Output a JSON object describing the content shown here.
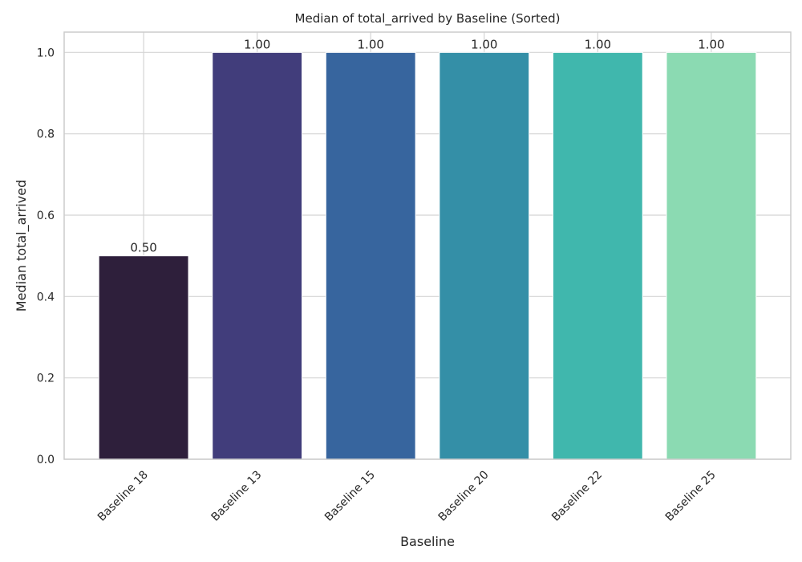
{
  "chart_data": {
    "type": "bar",
    "title": "Median of total_arrived by Baseline (Sorted)",
    "xlabel": "Baseline",
    "ylabel": "Median total_arrived",
    "categories": [
      "Baseline 18",
      "Baseline 13",
      "Baseline 15",
      "Baseline 20",
      "Baseline 22",
      "Baseline 25"
    ],
    "values": [
      0.5,
      1.0,
      1.0,
      1.0,
      1.0,
      1.0
    ],
    "data_labels": [
      "0.50",
      "1.00",
      "1.00",
      "1.00",
      "1.00",
      "1.00"
    ],
    "colors": [
      "#2e1f3b",
      "#413d7b",
      "#37659e",
      "#348fa7",
      "#40b7ad",
      "#8bdab2"
    ],
    "ylim": [
      0,
      1.05
    ],
    "yticks": [
      0.0,
      0.2,
      0.4,
      0.6,
      0.8,
      1.0
    ],
    "ytick_labels": [
      "0.0",
      "0.2",
      "0.4",
      "0.6",
      "0.8",
      "1.0"
    ],
    "grid": true,
    "grid_color": "#d4d4d4"
  }
}
